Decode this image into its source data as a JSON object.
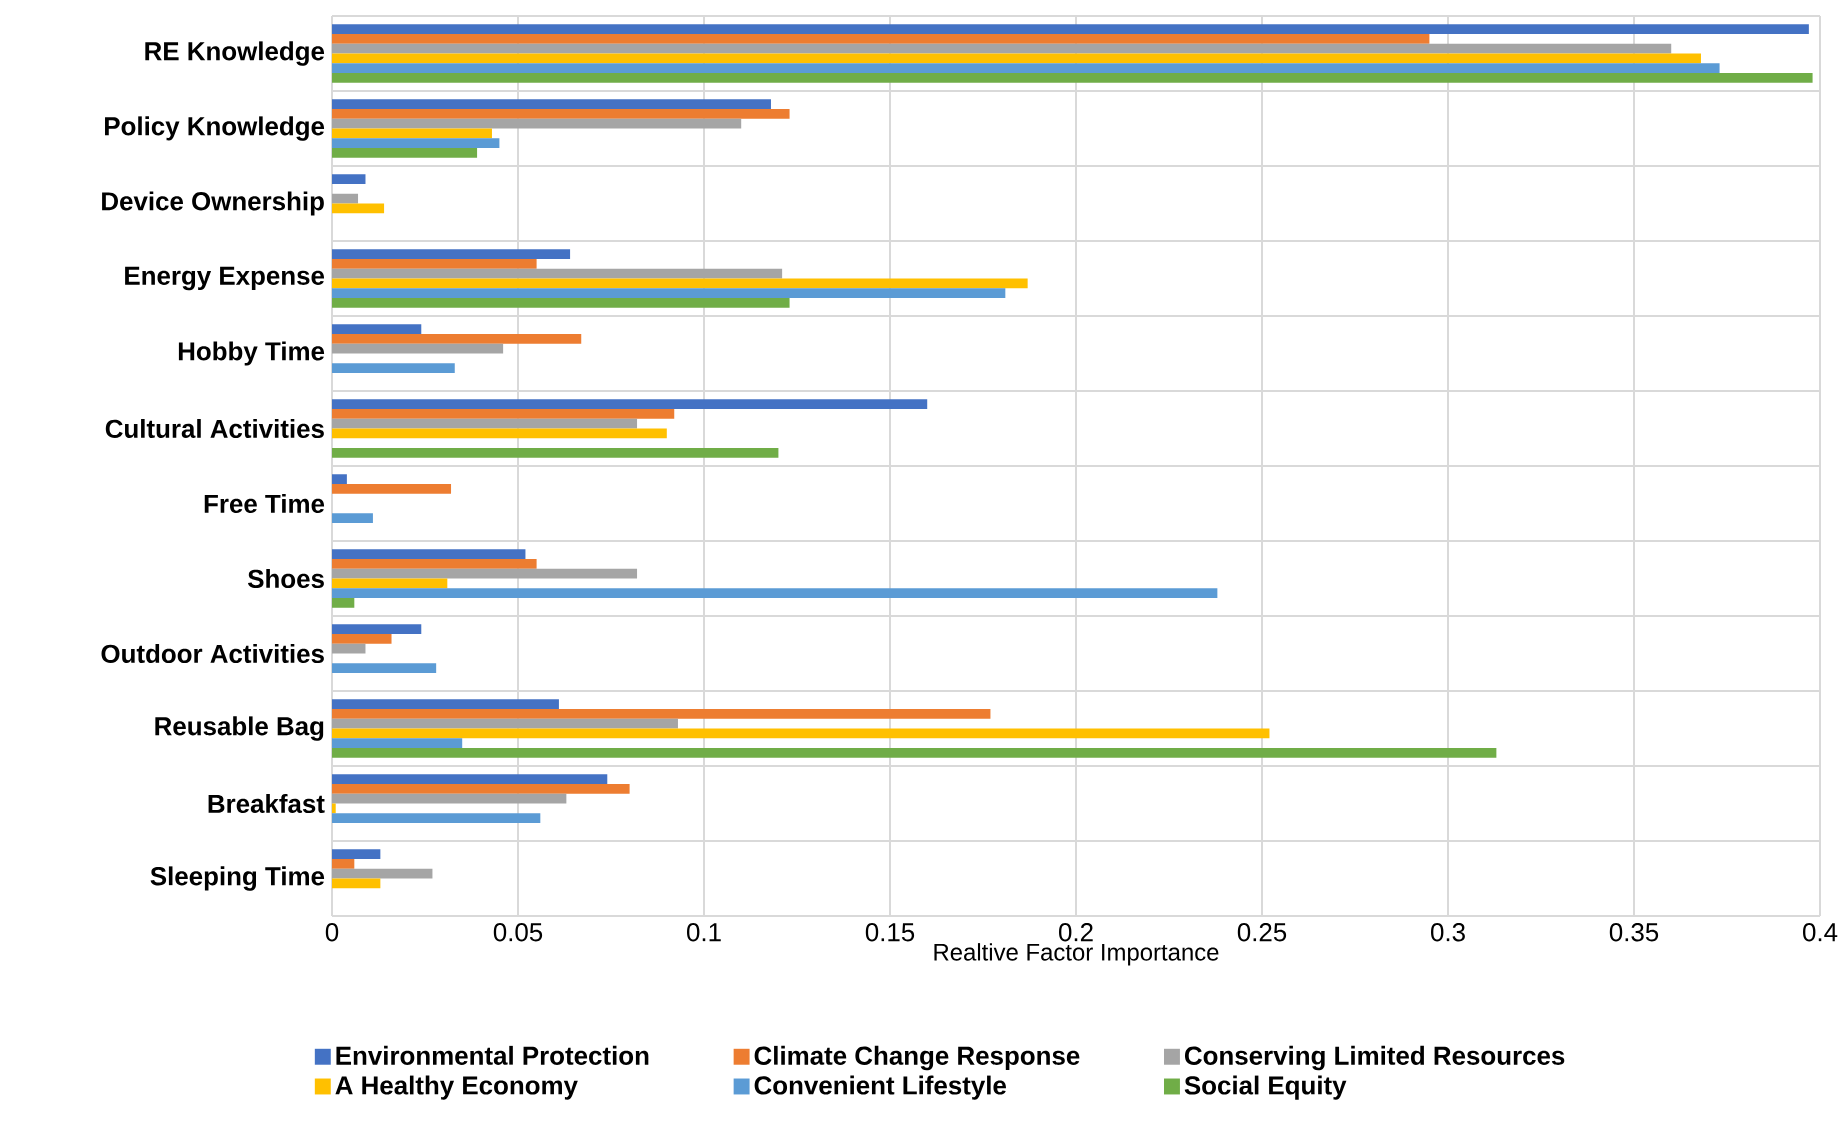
{
  "chart_data": {
    "type": "bar",
    "orientation": "horizontal",
    "xlabel": "Realtive Factor Importance",
    "categories": [
      "RE Knowledge",
      "Policy Knowledge",
      "Device Ownership",
      "Energy Expense",
      "Hobby Time",
      "Cultural Activities",
      "Free Time",
      "Shoes",
      "Outdoor Activities",
      "Reusable Bag",
      "Breakfast",
      "Sleeping Time"
    ],
    "series": [
      {
        "name": "Environmental Protection",
        "color": "#4472c4",
        "values": [
          0.397,
          0.118,
          0.009,
          0.064,
          0.024,
          0.16,
          0.004,
          0.052,
          0.024,
          0.061,
          0.074,
          0.013
        ]
      },
      {
        "name": "Climate Change Response",
        "color": "#ed7d31",
        "values": [
          0.295,
          0.123,
          0,
          0.055,
          0.067,
          0.092,
          0.032,
          0.055,
          0.016,
          0.177,
          0.08,
          0.006
        ]
      },
      {
        "name": "Conserving Limited Resources",
        "color": "#a5a5a5",
        "values": [
          0.36,
          0.11,
          0.007,
          0.121,
          0.046,
          0.082,
          0,
          0.082,
          0.009,
          0.093,
          0.063,
          0.027
        ]
      },
      {
        "name": "A Healthy Economy",
        "color": "#ffc000",
        "values": [
          0.368,
          0.043,
          0.014,
          0.187,
          0,
          0.09,
          0,
          0.031,
          0,
          0.252,
          0.001,
          0.013
        ]
      },
      {
        "name": "Convenient Lifestyle",
        "color": "#5b9bd5",
        "values": [
          0.373,
          0.045,
          0,
          0.181,
          0.033,
          0,
          0.011,
          0.238,
          0.028,
          0.035,
          0.056,
          0
        ]
      },
      {
        "name": "Social Equity",
        "color": "#70ad47",
        "values": [
          0.398,
          0.039,
          0,
          0.123,
          0,
          0.12,
          0,
          0.006,
          0,
          0.313,
          0,
          0
        ]
      }
    ],
    "xlim": [
      0,
      0.4
    ],
    "xticks": [
      0,
      0.05,
      0.1,
      0.15,
      0.2,
      0.25,
      0.3,
      0.35,
      0.4
    ],
    "grid": true,
    "legend": "bottom"
  }
}
